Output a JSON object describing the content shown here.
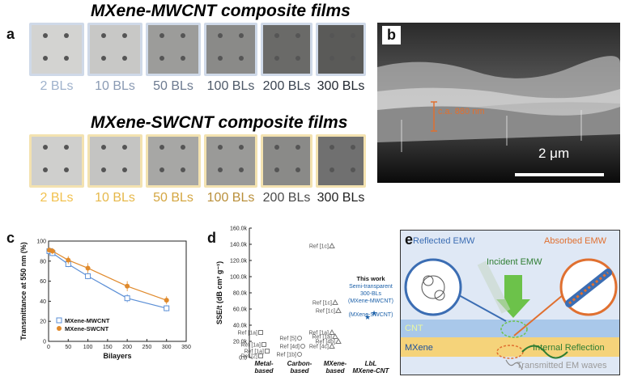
{
  "panel_a": {
    "letter": "a",
    "mwcnt_title": "MXene-MWCNT composite films",
    "swcnt_title": "MXene-SWCNT composite films",
    "mwcnt_labels": [
      "2 BLs",
      "10 BLs",
      "50 BLs",
      "100 BLs",
      "200 BLs",
      "300 BLs"
    ],
    "swcnt_labels": [
      "2 BLs",
      "10 BLs",
      "50 BLs",
      "100 BLs",
      "200 BLs",
      "300 BLs"
    ],
    "mwcnt_title_color": "#5b8fd6",
    "swcnt_title_color": "#f0b429",
    "mwcnt_label_colors": [
      "#9fb2cc",
      "#8a9ab3",
      "#6c7a90",
      "#4d5968",
      "#3a4350",
      "#222831"
    ],
    "swcnt_label_colors": [
      "#f2c14e",
      "#e6b84a",
      "#d4a640",
      "#b98f3a",
      "#4a4a4a",
      "#222222"
    ],
    "mwcnt_film_shades": [
      "#d3d3d1",
      "#c8c8c6",
      "#9c9c9a",
      "#8a8a88",
      "#6a6a68",
      "#5a5a58"
    ],
    "swcnt_film_shades": [
      "#cfcfcd",
      "#c4c4c2",
      "#a7a7a5",
      "#9a9a98",
      "#8a8a88",
      "#707070"
    ]
  },
  "panel_b": {
    "letter": "b",
    "thickness_label": "c.a. 880 nm",
    "scale_label": "2 μm"
  },
  "panel_c": {
    "letter": "c"
  },
  "panel_d": {
    "letter": "d",
    "this_work_title": "This work",
    "this_work_lines": [
      "Semi-transparent",
      "300-BLs",
      "(MXene-MWCNT)",
      "(MXene-SWCNT)"
    ],
    "ref_labels": [
      "Ref [1c]",
      "Ref [1c]",
      "Ref [1c]",
      "Ref [1a]",
      "Ref [5]",
      "Ref [4b]",
      "Ref [1a]",
      "Ref [1a]",
      "Ref [4d]",
      "Ref [4c]",
      "Ref [1a]",
      "Ref [1a]",
      "Ref [2]",
      "Ref [1b]"
    ]
  },
  "panel_e": {
    "letter": "e",
    "reflected": "Reflected EMW",
    "absorbed": "Absorbed EMW",
    "incident": "Incident EMW",
    "cnt": "CNT",
    "mxene": "MXene",
    "internal": "Internal Reflection",
    "transmitted": "Transmitted EM waves"
  },
  "chart_data": [
    {
      "type": "line",
      "title": "",
      "xlabel": "Bilayers",
      "ylabel": "Transmittance at 550 nm (%)",
      "xlim": [
        0,
        350
      ],
      "ylim": [
        0,
        100
      ],
      "xticks": [
        "0",
        "50",
        "100",
        "150",
        "200",
        "250",
        "300",
        "350"
      ],
      "yticks": [
        "0",
        "20",
        "40",
        "60",
        "80",
        "100"
      ],
      "legend_position": "bottom-left",
      "series": [
        {
          "name": "MXene-MWCNT",
          "color": "#5b8fd6",
          "marker": "square",
          "x": [
            2,
            10,
            50,
            100,
            200,
            300
          ],
          "y": [
            90,
            88,
            77,
            65,
            43,
            33
          ],
          "err": [
            2,
            3,
            3,
            3,
            4,
            3
          ]
        },
        {
          "name": "MXene-SWCNT",
          "color": "#e08a2c",
          "marker": "circle",
          "x": [
            2,
            10,
            50,
            100,
            200,
            300
          ],
          "y": [
            91,
            90,
            81,
            73,
            55,
            41
          ],
          "err": [
            2,
            3,
            4,
            5,
            5,
            4
          ]
        }
      ]
    },
    {
      "type": "scatter",
      "title": "",
      "xlabel": "",
      "ylabel": "SSE/t (dB cm² g⁻¹)",
      "ylim": [
        0,
        160
      ],
      "yticks": [
        "0.0",
        "20.0k",
        "40.0k",
        "60.0k",
        "80.0k",
        "100.0k",
        "120.0k",
        "140.0k",
        "160.0k"
      ],
      "categories": [
        "Metal-based",
        "Carbon-based",
        "MXene-based",
        "LbL MXene-CNT"
      ],
      "points": [
        {
          "category": "MXene-based",
          "y": 138,
          "label_idx": 0,
          "marker": "triangle"
        },
        {
          "category": "MXene-based",
          "y": 68,
          "label_idx": 1,
          "marker": "triangle"
        },
        {
          "category": "MXene-based",
          "y": 58,
          "label_idx": 2,
          "marker": "triangle"
        },
        {
          "category": "Metal-based",
          "y": 31,
          "label_idx": 3,
          "marker": "square"
        },
        {
          "category": "Carbon-based",
          "y": 24,
          "label_idx": 4,
          "marker": "circle"
        },
        {
          "category": "MXene-based",
          "y": 20,
          "label_idx": 5,
          "marker": "triangle"
        },
        {
          "category": "MXene-based",
          "y": 31,
          "label_idx": 6,
          "marker": "triangle"
        },
        {
          "category": "Metal-based",
          "y": 16,
          "label_idx": 7,
          "marker": "square"
        },
        {
          "category": "Carbon-based",
          "y": 14,
          "label_idx": 8,
          "marker": "circle"
        },
        {
          "category": "MXene-based",
          "y": 14,
          "label_idx": 9,
          "marker": "triangle"
        },
        {
          "category": "MXene-based",
          "y": 26,
          "label_idx": 10,
          "marker": "triangle"
        },
        {
          "category": "Metal-based",
          "y": 8,
          "label_idx": 11,
          "marker": "square"
        },
        {
          "category": "Metal-based",
          "y": 2,
          "label_idx": 12,
          "marker": "square"
        },
        {
          "category": "Carbon-based",
          "y": 4,
          "label_idx": 13,
          "marker": "circle"
        },
        {
          "category": "LbL MXene-CNT",
          "y": 55,
          "label_idx": -1,
          "marker": "star"
        },
        {
          "category": "LbL MXene-CNT",
          "y": 50,
          "label_idx": -1,
          "marker": "star"
        }
      ]
    }
  ]
}
